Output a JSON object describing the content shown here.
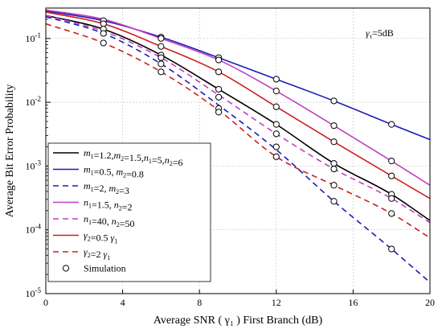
{
  "chart_data": {
    "type": "line",
    "title": "",
    "xlabel": "Average SNR ( γ₁ ) First Branch (dB)",
    "ylabel": "Average Bit Error Probability",
    "xlim": [
      0,
      20
    ],
    "ylim": [
      1e-05,
      0.3
    ],
    "yscale": "log",
    "grid": true,
    "legend_position": "bottom-left",
    "x_ticks": [
      0,
      4,
      8,
      12,
      16,
      20
    ],
    "y_ticks": [
      {
        "value": 0.1,
        "base": "10",
        "exp": "-1"
      },
      {
        "value": 0.01,
        "base": "10",
        "exp": "-2"
      },
      {
        "value": 0.001,
        "base": "10",
        "exp": "-3"
      },
      {
        "value": 0.0001,
        "base": "10",
        "exp": "-4"
      },
      {
        "value": 1e-05,
        "base": "10",
        "exp": "-5"
      }
    ],
    "annotation": {
      "symbol": "γ",
      "sub": "τ",
      "text": "=5dB"
    },
    "x": [
      0,
      3,
      6,
      9,
      12,
      15,
      18,
      20
    ],
    "series": [
      {
        "name": "m1=1.2,m2=1.5,n1=5,n2=6",
        "color": "#000000",
        "dash": "solid",
        "values": [
          0.23,
          0.14,
          0.055,
          0.016,
          0.0045,
          0.0011,
          0.00036,
          0.00014
        ]
      },
      {
        "name": "m1=0.5, m2=0.8",
        "color": "#1c1cb8",
        "dash": "solid",
        "values": [
          0.27,
          0.19,
          0.105,
          0.05,
          0.023,
          0.0105,
          0.0045,
          0.0026
        ]
      },
      {
        "name": "m1=2, m2=3",
        "color": "#1c1cb8",
        "dash": "dashed",
        "values": [
          0.22,
          0.12,
          0.04,
          0.009,
          0.0018,
          0.00028,
          5e-05,
          1.5e-05
        ]
      },
      {
        "name": "n1=1.5, n2=2",
        "color": "#c040c0",
        "dash": "solid",
        "values": [
          0.28,
          0.2,
          0.1,
          0.046,
          0.015,
          0.0043,
          0.0012,
          0.0005
        ]
      },
      {
        "name": "n1=40, n2=50",
        "color": "#c040c0",
        "dash": "dashed",
        "values": [
          0.23,
          0.13,
          0.05,
          0.013,
          0.0032,
          0.0009,
          0.00031,
          0.00013
        ]
      },
      {
        "name": "γ2=0.5 γ1",
        "color": "#cc2020",
        "dash": "solid",
        "values": [
          0.26,
          0.17,
          0.075,
          0.03,
          0.0085,
          0.0024,
          0.0007,
          0.00031
        ]
      },
      {
        "name": "γ2=2 γ1",
        "color": "#cc2020",
        "dash": "dashed",
        "values": [
          0.17,
          0.085,
          0.03,
          0.0075,
          0.0014,
          0.0005,
          0.00018,
          7.5e-05
        ]
      }
    ],
    "simulation": {
      "name": "Simulation",
      "points": [
        [
          3,
          0.19
        ],
        [
          3,
          0.17
        ],
        [
          3,
          0.14
        ],
        [
          3,
          0.12
        ],
        [
          3,
          0.085
        ],
        [
          6,
          0.105
        ],
        [
          6,
          0.1
        ],
        [
          6,
          0.075
        ],
        [
          6,
          0.055
        ],
        [
          6,
          0.05
        ],
        [
          6,
          0.04
        ],
        [
          6,
          0.03
        ],
        [
          9,
          0.05
        ],
        [
          9,
          0.046
        ],
        [
          9,
          0.03
        ],
        [
          9,
          0.016
        ],
        [
          9,
          0.012
        ],
        [
          9,
          0.008
        ],
        [
          9,
          0.007
        ],
        [
          12,
          0.023
        ],
        [
          12,
          0.015
        ],
        [
          12,
          0.0085
        ],
        [
          12,
          0.0045
        ],
        [
          12,
          0.0032
        ],
        [
          12,
          0.002
        ],
        [
          12,
          0.0014
        ],
        [
          15,
          0.0105
        ],
        [
          15,
          0.0043
        ],
        [
          15,
          0.0024
        ],
        [
          15,
          0.0011
        ],
        [
          15,
          0.0009
        ],
        [
          15,
          0.0005
        ],
        [
          15,
          0.00028
        ],
        [
          18,
          0.0045
        ],
        [
          18,
          0.0012
        ],
        [
          18,
          0.0007
        ],
        [
          18,
          0.00036
        ],
        [
          18,
          0.00031
        ],
        [
          18,
          0.00018
        ],
        [
          18,
          5e-05
        ]
      ]
    },
    "legend": [
      {
        "series": 0,
        "parts": [
          [
            "m",
            "1"
          ],
          [
            "=1.2,",
            ""
          ],
          [
            "m",
            "2"
          ],
          [
            "=1.5,",
            ""
          ],
          [
            "n",
            "1"
          ],
          [
            "=5,",
            ""
          ],
          [
            "n",
            "2"
          ],
          [
            "=6",
            ""
          ]
        ]
      },
      {
        "series": 1,
        "parts": [
          [
            "m",
            "1"
          ],
          [
            "=0.5, ",
            ""
          ],
          [
            "m",
            "2"
          ],
          [
            "=0.8",
            ""
          ]
        ]
      },
      {
        "series": 2,
        "parts": [
          [
            "m",
            "1"
          ],
          [
            "=2, ",
            ""
          ],
          [
            "m",
            "2"
          ],
          [
            "=3",
            ""
          ]
        ]
      },
      {
        "series": 3,
        "parts": [
          [
            "n",
            "1"
          ],
          [
            "=1.5, ",
            ""
          ],
          [
            "n",
            "2"
          ],
          [
            "=2",
            ""
          ]
        ]
      },
      {
        "series": 4,
        "parts": [
          [
            "n",
            "1"
          ],
          [
            "=40, ",
            ""
          ],
          [
            "n",
            "2"
          ],
          [
            "=50",
            ""
          ]
        ]
      },
      {
        "series": 5,
        "parts": [
          [
            "γ",
            "2"
          ],
          [
            "=0.5 ",
            ""
          ],
          [
            "γ",
            "1"
          ]
        ]
      },
      {
        "series": 6,
        "parts": [
          [
            "γ",
            "2"
          ],
          [
            "=2 ",
            ""
          ],
          [
            "γ",
            "1"
          ]
        ]
      },
      {
        "series": -1,
        "parts": [
          [
            "Simulation",
            ""
          ]
        ]
      }
    ]
  }
}
